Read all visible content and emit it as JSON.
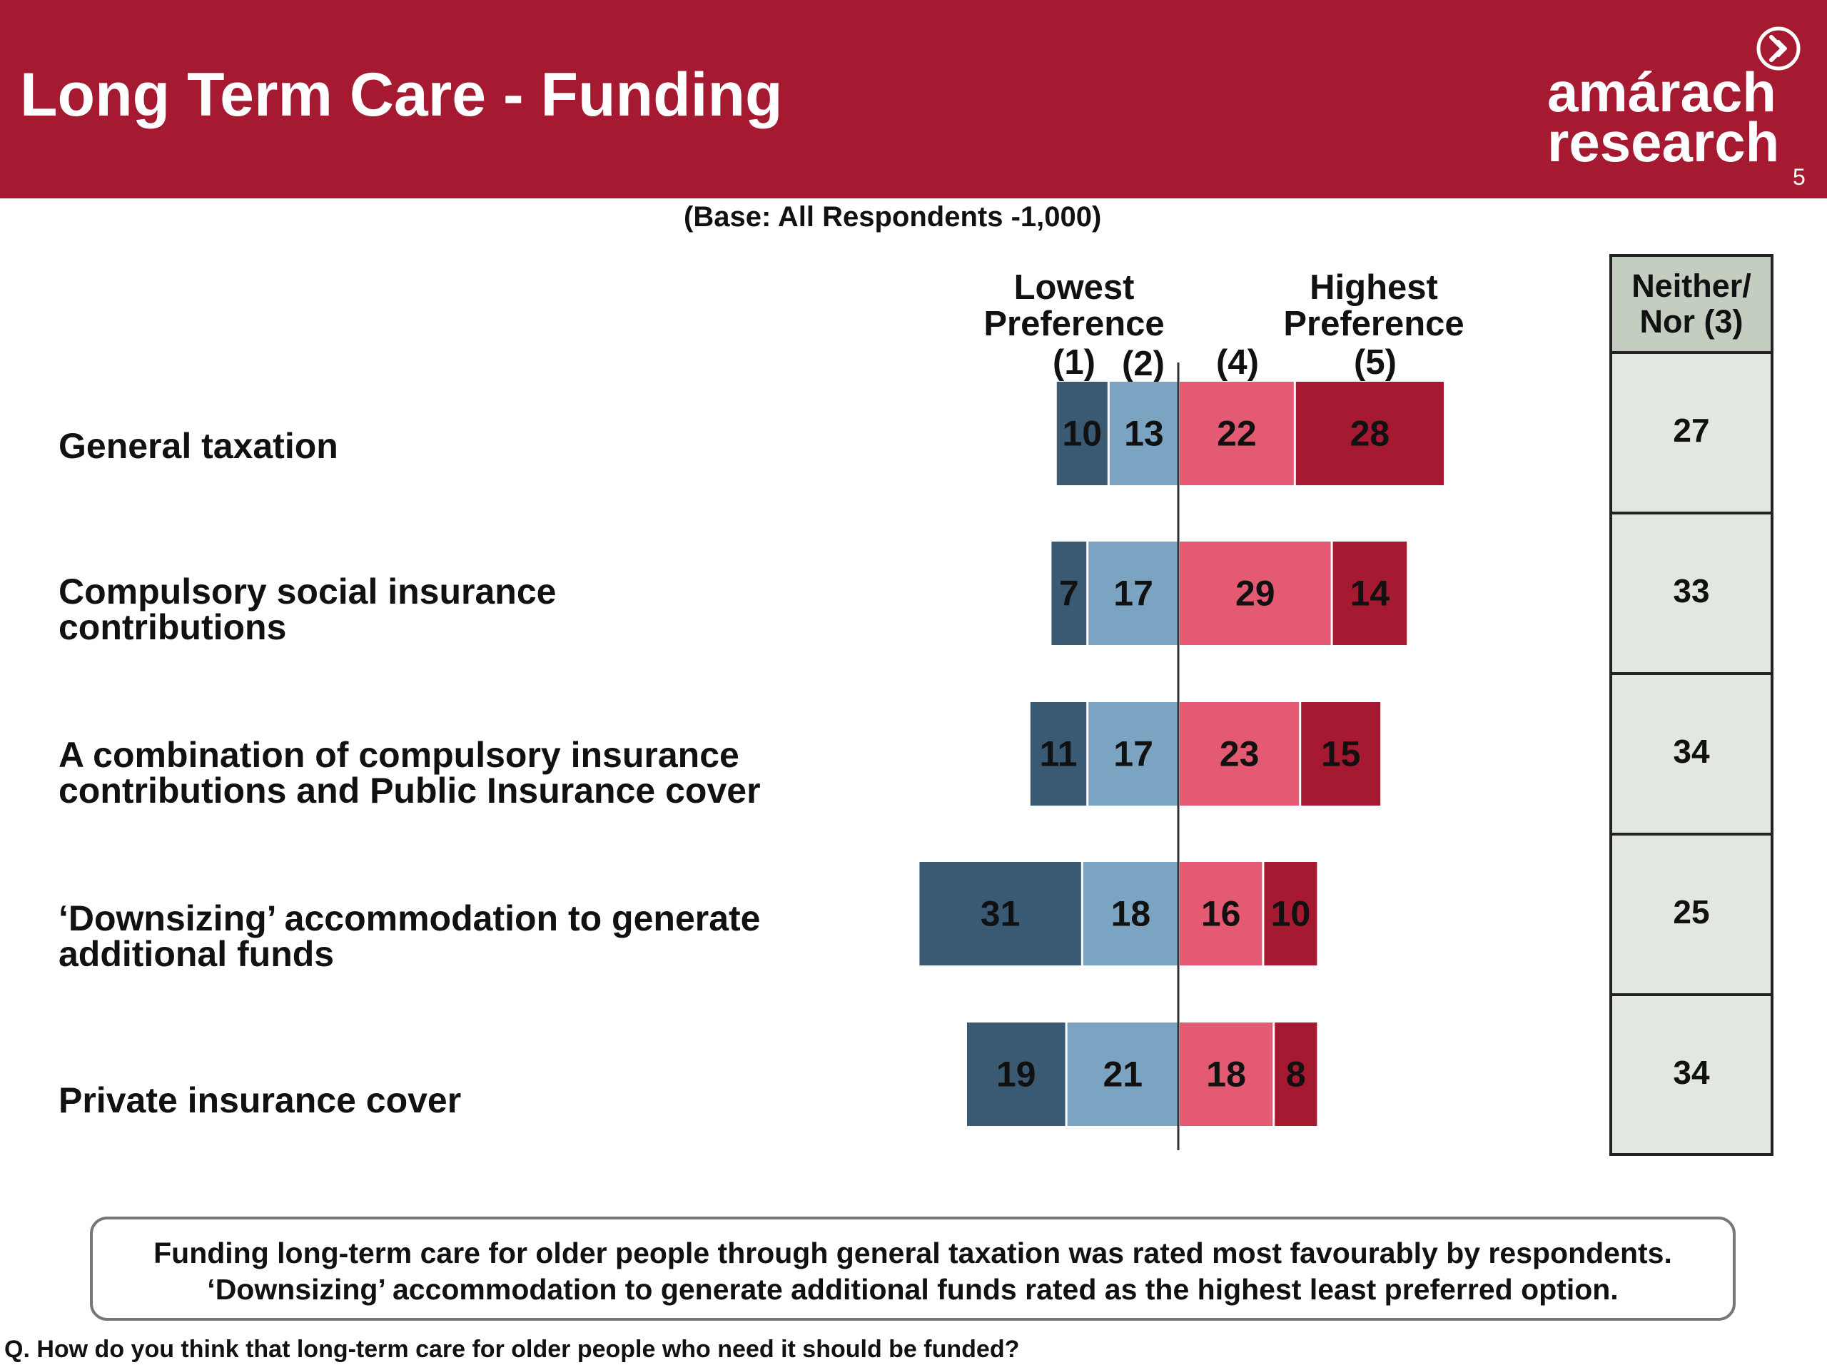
{
  "header": {
    "title": "Long Term Care - Funding",
    "logo_line1": "amárach",
    "logo_line2": "research",
    "logo_icon": "chevron-circle-icon",
    "page_number": "5"
  },
  "base_note": "(Base:  All Respondents -1,000)",
  "columns": {
    "lowest_line1": "Lowest",
    "lowest_line2": "Preference",
    "highest_line1": "Highest",
    "highest_line2": "Preference",
    "c1": "(1)",
    "c2": "(2)",
    "c4": "(4)",
    "c5": "(5)"
  },
  "neither": {
    "header_line1": "Neither/",
    "header_line2": "Nor (3)"
  },
  "rows": [
    {
      "label_line1": "General taxation",
      "label_line2": ""
    },
    {
      "label_line1": "Compulsory social insurance",
      "label_line2": "contributions"
    },
    {
      "label_line1": "A combination of compulsory insurance",
      "label_line2": "contributions and Public Insurance cover"
    },
    {
      "label_line1": "‘Downsizing’ accommodation to generate",
      "label_line2": "additional funds"
    },
    {
      "label_line1": "Private insurance cover",
      "label_line2": ""
    }
  ],
  "chart_data": {
    "type": "bar",
    "subtype": "diverging-stacked",
    "categories": [
      "General taxation",
      "Compulsory social insurance contributions",
      "A combination of compulsory insurance contributions and Public Insurance cover",
      "‘Downsizing’ accommodation to generate additional funds",
      "Private insurance cover"
    ],
    "series": [
      {
        "name": "(1)",
        "values": [
          10,
          7,
          11,
          31,
          19
        ],
        "color": "#3A5A74"
      },
      {
        "name": "(2)",
        "values": [
          13,
          17,
          17,
          18,
          21
        ],
        "color": "#7BA4C2"
      },
      {
        "name": "(4)",
        "values": [
          22,
          29,
          23,
          16,
          18
        ],
        "color": "#E55A73"
      },
      {
        "name": "(5)",
        "values": [
          28,
          14,
          15,
          10,
          8
        ],
        "color": "#A51931"
      }
    ],
    "neither_nor": [
      27,
      33,
      34,
      25,
      34
    ],
    "grid": false
  },
  "summary": {
    "line1": "Funding long-term care for older people through general taxation was rated most favourably by respondents.",
    "line2": "‘Downsizing’ accommodation to generate additional funds rated as the highest least preferred option."
  },
  "question": "Q. How do you think that long-term care for older people who need it should be funded?"
}
